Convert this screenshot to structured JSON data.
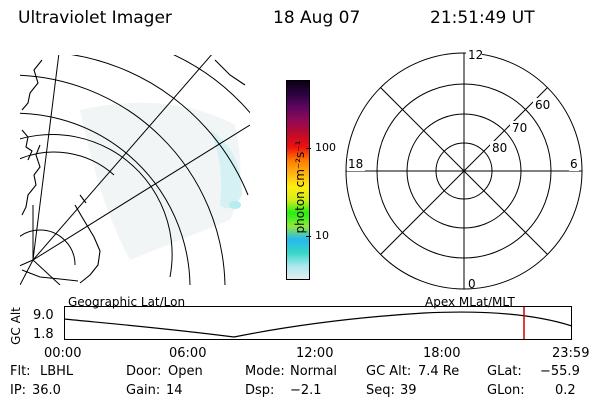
{
  "header": {
    "title": "Ultraviolet Imager",
    "date": "18 Aug 07",
    "time": "21:51:49 UT"
  },
  "colorbar": {
    "unit_label": "photon cm⁻²s⁻¹",
    "tick_labels": [
      "100",
      "10"
    ],
    "colors": [
      "#e6ecec",
      "#a8e8ef",
      "#35d6c4",
      "#28b8f0",
      "#8fe83a",
      "#24ef14",
      "#d6ec17",
      "#ffee11",
      "#ffb311",
      "#ff7a00",
      "#ee1010",
      "#bd0b2a",
      "#8f0a55",
      "#5f0660",
      "#2c0240",
      "#0c0016"
    ]
  },
  "geo_map": {
    "label": "Geographic Lat/Lon"
  },
  "polar_plot": {
    "label": "Apex MLat/MLT",
    "mlt_labels": [
      "12",
      "18",
      "6",
      "0"
    ],
    "lat_labels": [
      "60",
      "70",
      "80"
    ]
  },
  "altitude_plot": {
    "axis_label": "GC Alt",
    "y_ticks": [
      "9.0",
      "1.8"
    ],
    "x_ticks": [
      "00:00",
      "06:00",
      "12:00",
      "18:00",
      "23:59"
    ],
    "marker_color": "#cc0000"
  },
  "status": {
    "row1": [
      {
        "label": "Flt:",
        "value": "LBHL"
      },
      {
        "label": "Door:",
        "value": "Open"
      },
      {
        "label": "Mode:",
        "value": "Normal"
      },
      {
        "label": "GC Alt:",
        "value": "7.4 Re"
      },
      {
        "label": "GLat:",
        "value": "−55.9"
      }
    ],
    "row2": [
      {
        "label": "IP:",
        "value": "36.0"
      },
      {
        "label": "Gain:",
        "value": "14"
      },
      {
        "label": "Dsp:",
        "value": "−2.1"
      },
      {
        "label": "Seq:",
        "value": "39"
      },
      {
        "label": "GLon:",
        "value": "0.2"
      }
    ]
  }
}
